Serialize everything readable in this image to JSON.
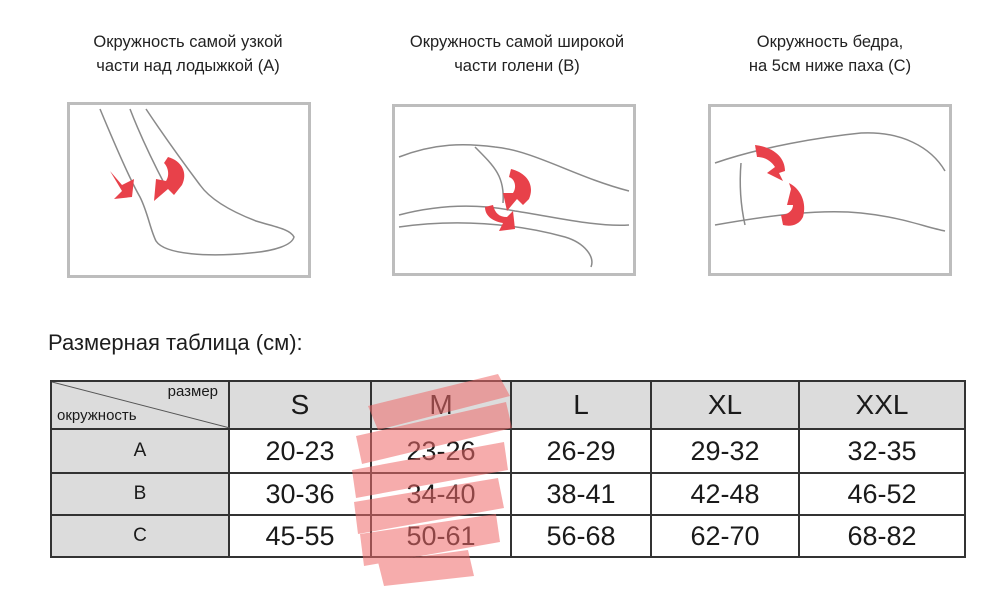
{
  "measurements": [
    {
      "line1": "Окружность самой узкой",
      "line2": "части над лодыжкой (A)"
    },
    {
      "line1": "Окружность самой широкой",
      "line2": "части голени (B)"
    },
    {
      "line1": "Окружность бедра,",
      "line2": "на 5см ниже паха (C)"
    }
  ],
  "table": {
    "title": "Размерная таблица (см):",
    "corner_size_label": "размер",
    "corner_girth_label": "окружность",
    "sizes": [
      "S",
      "M",
      "L",
      "XL",
      "XXL"
    ],
    "rows": [
      {
        "label": "A",
        "values": [
          "20-23",
          "23-26",
          "26-29",
          "29-32",
          "32-35"
        ]
      },
      {
        "label": "B",
        "values": [
          "30-36",
          "34-40",
          "38-41",
          "42-48",
          "46-52"
        ]
      },
      {
        "label": "C",
        "values": [
          "45-55",
          "50-61",
          "56-68",
          "62-70",
          "68-82"
        ]
      }
    ],
    "highlighted_size": "M"
  },
  "colors": {
    "accent_arrow": "#e8414a",
    "highlight": "#ef6a6a",
    "header_bg": "#dcdcdc"
  }
}
